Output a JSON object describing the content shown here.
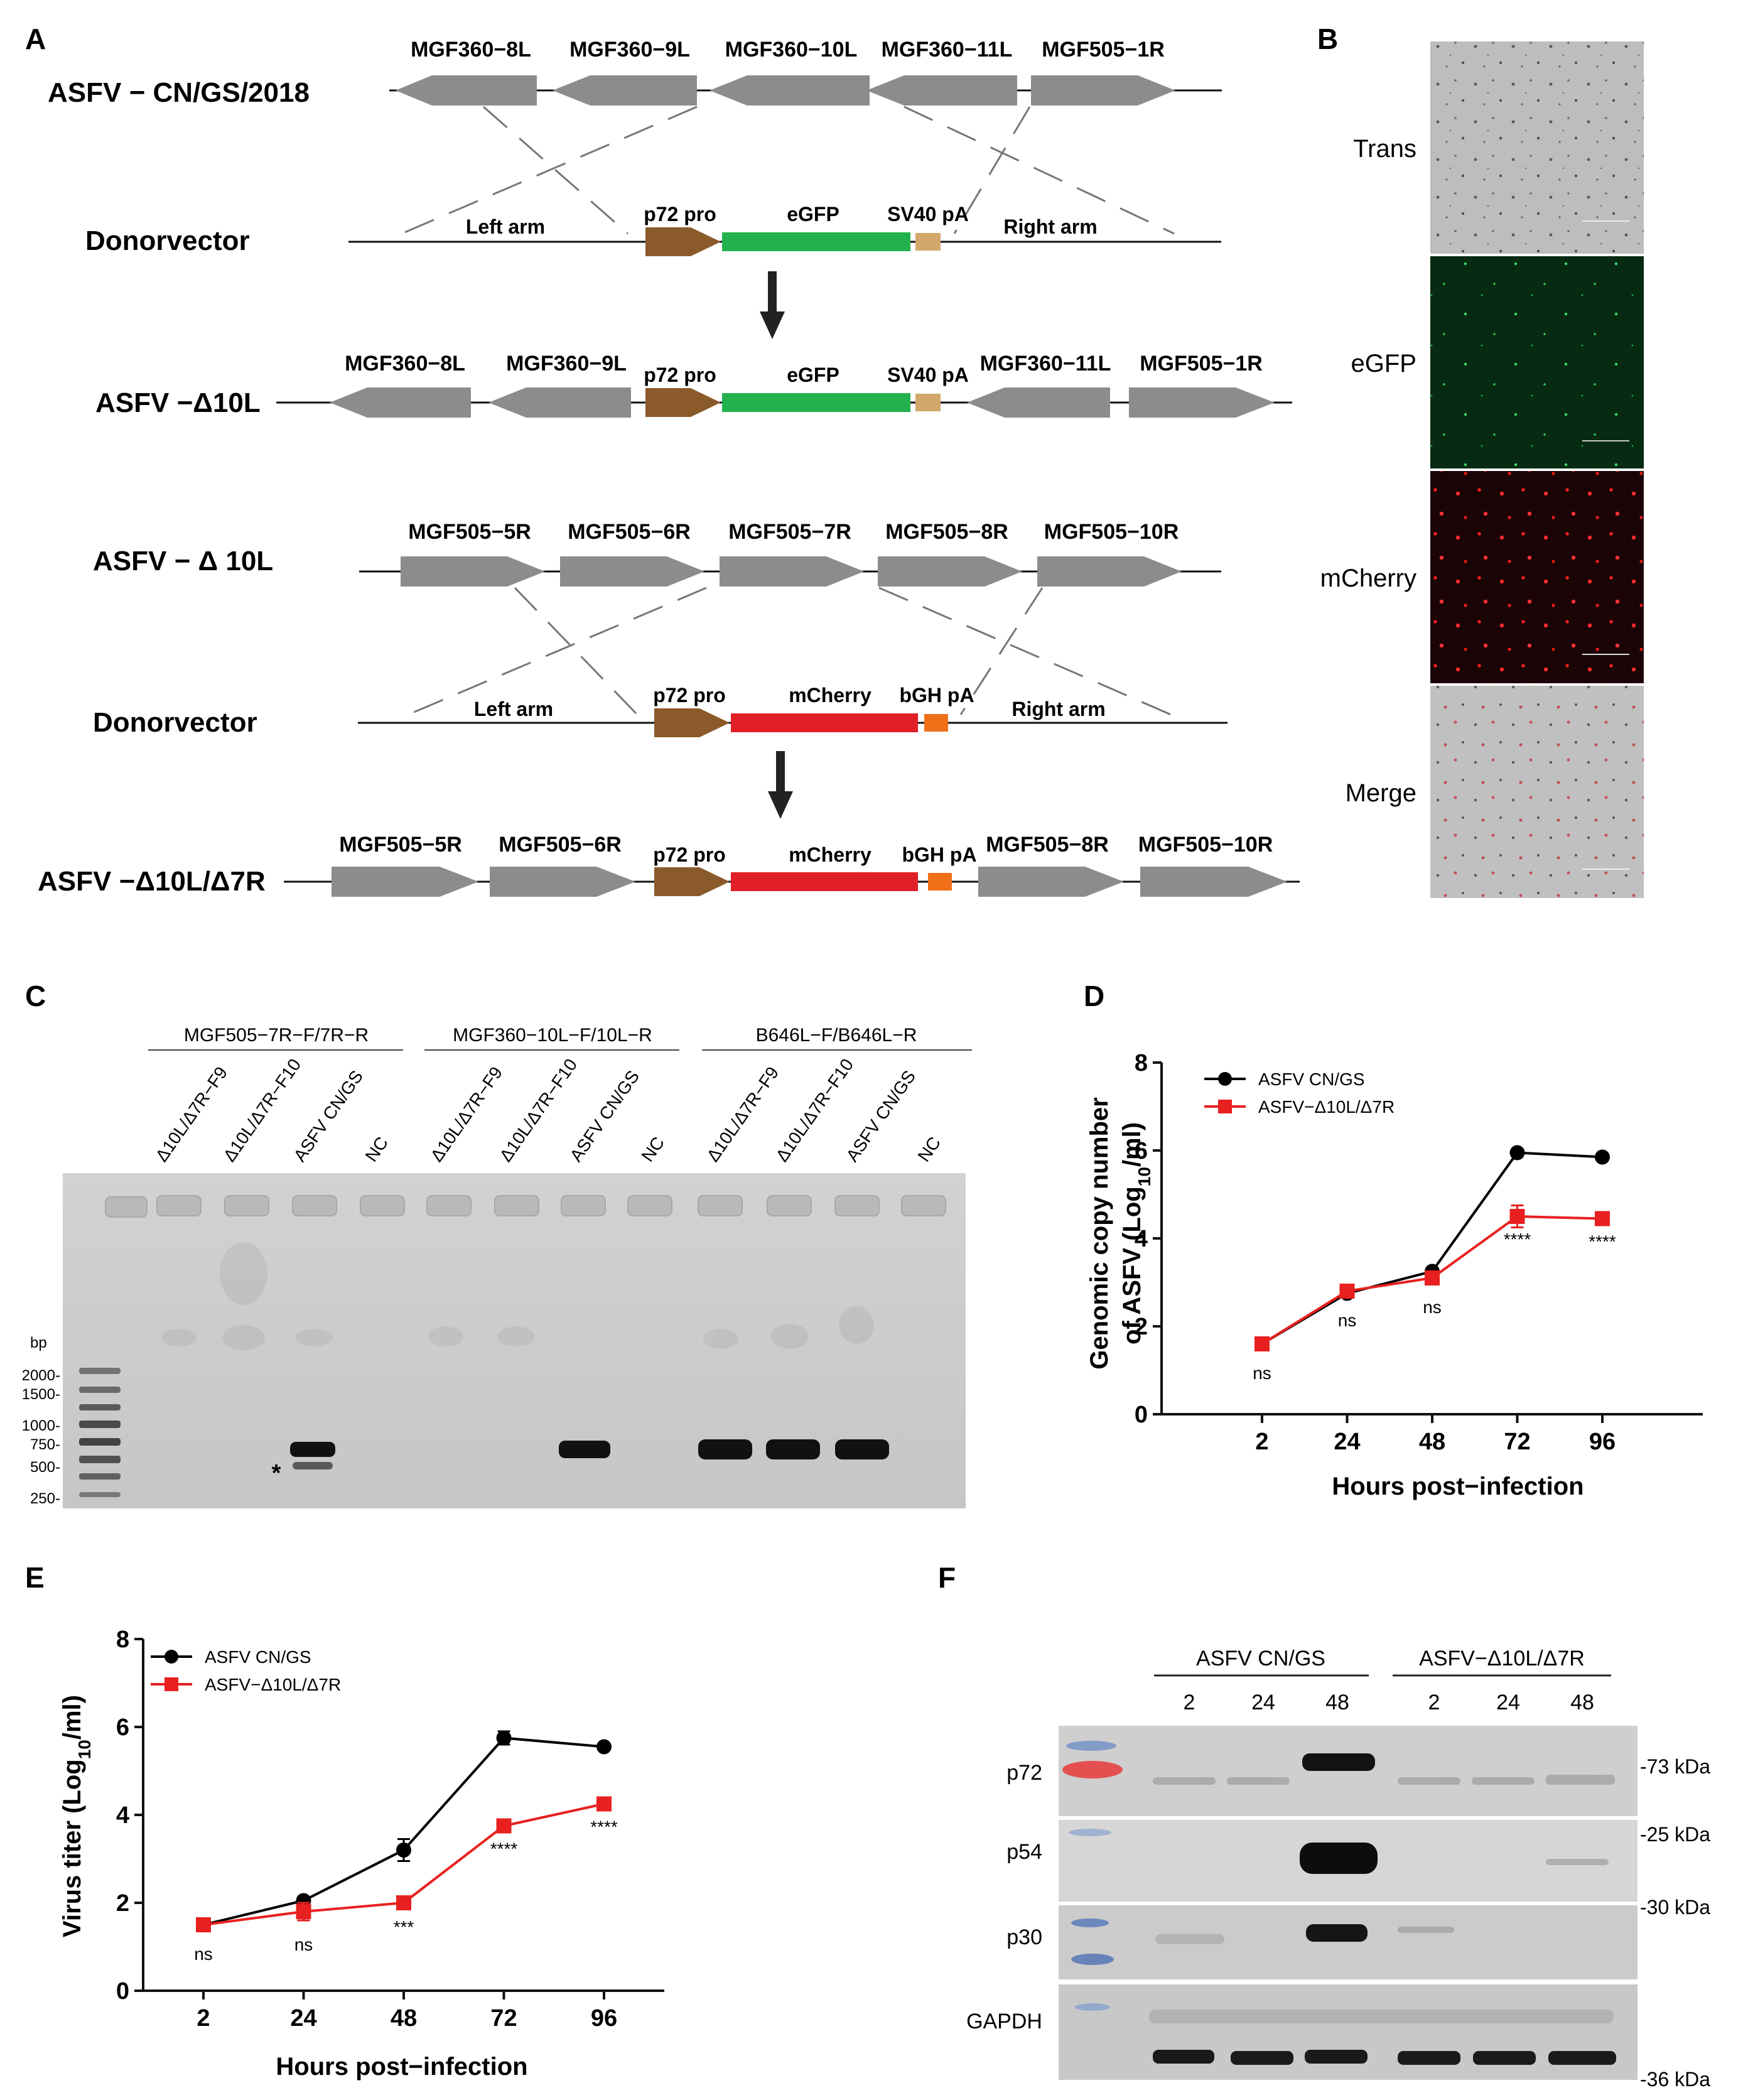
{
  "panelA": {
    "letter": "A",
    "rows": [
      {
        "id": "cn",
        "label": "ASFV − CN/GS/2018",
        "genes": [
          "MGF360−8L",
          "MGF360−9L",
          "MGF360−10L",
          "MGF360−11L",
          "MGF505−1R"
        ]
      },
      {
        "id": "donor1",
        "label": "Donorvector",
        "left_arm": "Left arm",
        "right_arm": "Right arm",
        "promoter": "p72 pro",
        "reporter": "eGFP",
        "polyA": "SV40 pA"
      },
      {
        "id": "d10l",
        "label": "ASFV −Δ10L",
        "genes": [
          "MGF360−8L",
          "MGF360−9L",
          "MGF360−11L",
          "MGF505−1R"
        ],
        "promoter": "p72 pro",
        "reporter": "eGFP",
        "polyA": "SV40 pA"
      },
      {
        "id": "d10l_b",
        "label": "ASFV − Δ 10L",
        "genes": [
          "MGF505−5R",
          "MGF505−6R",
          "MGF505−7R",
          "MGF505−8R",
          "MGF505−10R"
        ]
      },
      {
        "id": "donor2",
        "label": "Donorvector",
        "left_arm": "Left arm",
        "right_arm": "Right arm",
        "promoter": "p72 pro",
        "reporter": "mCherry",
        "polyA": "bGH pA"
      },
      {
        "id": "d10l7r",
        "label": "ASFV −Δ10L/Δ7R",
        "genes": [
          "MGF505−5R",
          "MGF505−6R",
          "MGF505−8R",
          "MGF505−10R"
        ],
        "promoter": "p72 pro",
        "reporter": "mCherry",
        "polyA": "bGH pA"
      }
    ],
    "colors": {
      "gene": "#8c8c8c",
      "promoter": "#8b5a2b",
      "egfp": "#22b14c",
      "sv40": "#d2a86a",
      "mcherry": "#e01f26",
      "bgh": "#f0701a"
    }
  },
  "panelB": {
    "letter": "B",
    "channels": [
      "Trans",
      "eGFP",
      "mCherry",
      "Merge"
    ]
  },
  "panelC": {
    "letter": "C",
    "groups": [
      "MGF505−7R−F/7R−R",
      "MGF360−10L−F/10L−R",
      "B646L−F/B646L−R"
    ],
    "lanes": [
      "Δ10L/Δ7R−F9",
      "Δ10L/Δ7R−F10",
      "ASFV CN/GS",
      "NC"
    ],
    "ladder_title": "bp",
    "ladder": [
      "2000-",
      "1500-",
      "1000-",
      "750-",
      "500-",
      "250-"
    ],
    "asterisk": "*"
  },
  "panelD": {
    "letter": "D",
    "chart_data": {
      "type": "line",
      "x": [
        2,
        24,
        48,
        72,
        96
      ],
      "categories": [
        "2",
        "24",
        "48",
        "72",
        "96"
      ],
      "xlabel": "Hours post−infection",
      "ylabel": "Genomic copy number of ASFV (Log10/ml)",
      "ylabel_line1": "Genomic copy number",
      "ylabel_line2_pre": "of ASFV (Log",
      "ylabel_sub": "10",
      "ylabel_line2_post": "/ml)",
      "ylim": [
        0,
        8
      ],
      "yticks": [
        "0",
        "2",
        "4",
        "6",
        "8"
      ],
      "legend": "top-left",
      "series": [
        {
          "name": "ASFV CN/GS",
          "color": "#000000",
          "values": [
            1.6,
            2.75,
            3.25,
            5.95,
            5.85
          ],
          "errors": [
            0,
            0,
            0,
            0,
            0
          ]
        },
        {
          "name": "ASFV−Δ10L/Δ7R",
          "color": "#e8201f",
          "values": [
            1.6,
            2.8,
            3.1,
            4.5,
            4.45
          ],
          "errors": [
            0,
            0,
            0,
            0.25,
            0
          ]
        }
      ],
      "annotations": [
        "ns",
        "ns",
        "ns",
        "****",
        "****"
      ]
    }
  },
  "panelE": {
    "letter": "E",
    "chart_data": {
      "type": "line",
      "x": [
        2,
        24,
        48,
        72,
        96
      ],
      "categories": [
        "2",
        "24",
        "48",
        "72",
        "96"
      ],
      "xlabel": "Hours post−infection",
      "ylabel": "Virus titer (Log10/ml)",
      "ylabel_pre": "Virus titer (Log",
      "ylabel_sub": "10",
      "ylabel_post": "/ml)",
      "ylim": [
        0,
        8
      ],
      "yticks": [
        "0",
        "2",
        "4",
        "6",
        "8"
      ],
      "legend": "top-left",
      "series": [
        {
          "name": "ASFV CN/GS",
          "color": "#000000",
          "values": [
            1.5,
            2.05,
            3.2,
            5.75,
            5.55
          ],
          "errors": [
            0,
            0,
            0.25,
            0.15,
            0.05
          ]
        },
        {
          "name": "ASFV−Δ10L/Δ7R",
          "color": "#e8201f",
          "values": [
            1.5,
            1.8,
            2.0,
            3.75,
            4.25
          ],
          "errors": [
            0,
            0.2,
            0,
            0.1,
            0.1
          ]
        }
      ],
      "annotations": [
        "ns",
        "ns",
        "***",
        "****",
        "****"
      ]
    }
  },
  "panelF": {
    "letter": "F",
    "groups": [
      "ASFV CN/GS",
      "ASFV−Δ10L/Δ7R"
    ],
    "timepoints": [
      "2",
      "24",
      "48",
      "2",
      "24",
      "48"
    ],
    "proteins": [
      "p72",
      "p54",
      "p30",
      "GAPDH"
    ],
    "sizes": [
      "-73 kDa",
      "-25 kDa",
      "-30 kDa",
      "-36 kDa"
    ]
  }
}
